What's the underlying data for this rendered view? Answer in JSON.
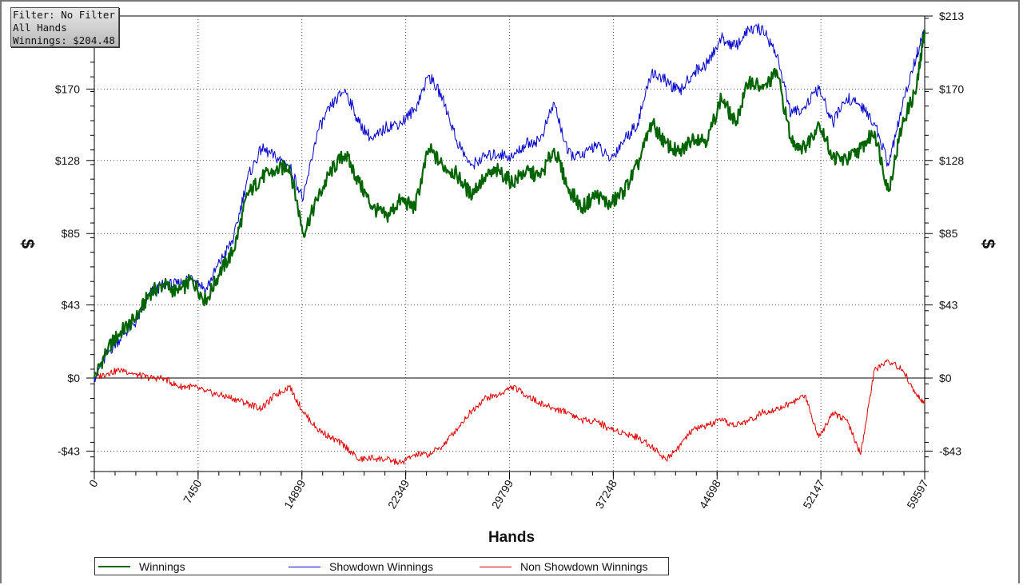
{
  "info_box": {
    "filter": "Filter: No Filter",
    "hands": "All Hands",
    "winnings": "Winnings: $204.48"
  },
  "x_axis_title": "Hands",
  "y_axis_title": "$",
  "legend": [
    {
      "label": "Winnings",
      "color": "#006400"
    },
    {
      "label": "Showdown Winnings",
      "color": "#0000cc"
    },
    {
      "label": "Non Showdown Winnings",
      "color": "#e00000"
    }
  ],
  "chart_data": {
    "type": "line",
    "xlabel": "Hands",
    "ylabel": "$",
    "xlim": [
      0,
      59597
    ],
    "ylim": [
      -55,
      213
    ],
    "x_ticks": [
      "0",
      "7450",
      "14899",
      "22349",
      "29799",
      "37248",
      "44698",
      "52147",
      "59597"
    ],
    "y_ticks": [
      {
        "value": -43,
        "label": "-$43"
      },
      {
        "value": 0,
        "label": "$0"
      },
      {
        "value": 43,
        "label": "$43"
      },
      {
        "value": 85,
        "label": "$85"
      },
      {
        "value": 128,
        "label": "$128"
      },
      {
        "value": 170,
        "label": "$170"
      },
      {
        "value": 213,
        "label": "$213"
      }
    ],
    "grid": true,
    "x": [
      0,
      1000,
      2000,
      3000,
      4000,
      5000,
      6000,
      7000,
      8000,
      9000,
      10000,
      11000,
      12000,
      13000,
      14000,
      15000,
      16000,
      17000,
      18000,
      19000,
      20000,
      21000,
      22000,
      23000,
      24000,
      25000,
      26000,
      27000,
      28000,
      29000,
      30000,
      31000,
      32000,
      33000,
      34000,
      35000,
      36000,
      37000,
      38000,
      39000,
      40000,
      41000,
      42000,
      43000,
      44000,
      45000,
      46000,
      47000,
      48000,
      49000,
      50000,
      51000,
      52000,
      53000,
      54000,
      55000,
      56000,
      57000,
      58000,
      59000,
      59597
    ],
    "series": [
      {
        "name": "Winnings",
        "color": "#006400",
        "values": [
          0,
          18,
          28,
          35,
          50,
          55,
          50,
          58,
          45,
          62,
          75,
          108,
          118,
          122,
          125,
          85,
          105,
          122,
          132,
          115,
          100,
          95,
          105,
          100,
          135,
          125,
          120,
          108,
          118,
          122,
          115,
          122,
          118,
          135,
          112,
          100,
          108,
          102,
          110,
          125,
          150,
          138,
          132,
          142,
          140,
          165,
          150,
          175,
          170,
          180,
          140,
          135,
          150,
          130,
          128,
          135,
          145,
          110,
          150,
          170,
          204.48
        ]
      },
      {
        "name": "Showdown Winnings",
        "color": "#0000cc",
        "values": [
          0,
          15,
          25,
          33,
          50,
          55,
          55,
          60,
          52,
          68,
          82,
          118,
          135,
          130,
          125,
          105,
          145,
          160,
          170,
          150,
          140,
          148,
          150,
          158,
          178,
          165,
          140,
          125,
          130,
          132,
          130,
          138,
          140,
          162,
          132,
          130,
          138,
          128,
          140,
          150,
          180,
          175,
          168,
          180,
          185,
          200,
          195,
          205,
          205,
          190,
          155,
          160,
          170,
          150,
          165,
          160,
          150,
          125,
          160,
          190,
          204
        ]
      },
      {
        "name": "Non Showdown Winnings",
        "color": "#e00000",
        "values": [
          0,
          3,
          5,
          2,
          0,
          0,
          -5,
          -5,
          -8,
          -10,
          -12,
          -15,
          -18,
          -10,
          -5,
          -20,
          -30,
          -35,
          -40,
          -48,
          -47,
          -48,
          -50,
          -45,
          -45,
          -40,
          -30,
          -20,
          -12,
          -10,
          -5,
          -10,
          -15,
          -18,
          -20,
          -25,
          -25,
          -30,
          -32,
          -35,
          -40,
          -48,
          -40,
          -30,
          -28,
          -25,
          -28,
          -25,
          -20,
          -18,
          -15,
          -10,
          -35,
          -20,
          -25,
          -45,
          5,
          10,
          5,
          -10,
          -15
        ]
      }
    ]
  }
}
